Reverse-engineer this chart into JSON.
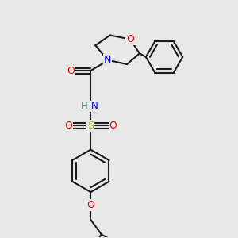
{
  "bg_color": "#e8e8e8",
  "bond_color": "#1a1a1a",
  "bond_width": 1.5,
  "figsize": [
    3.0,
    3.0
  ],
  "dpi": 100,
  "xlim": [
    0,
    10
  ],
  "ylim": [
    0,
    10
  ]
}
